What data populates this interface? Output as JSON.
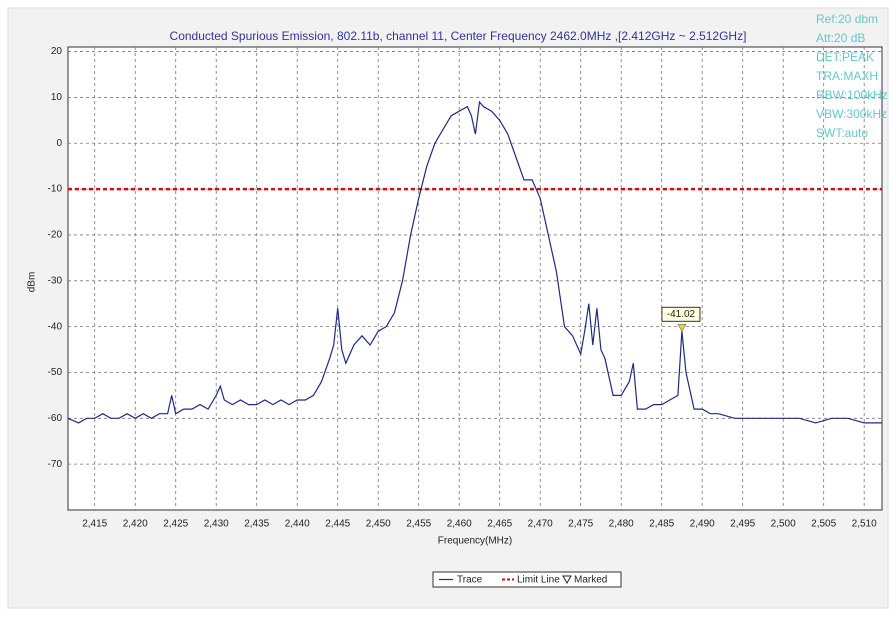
{
  "chart_data": {
    "type": "line",
    "title": "Conducted Spurious Emission, 802.11b, channel 11, Center Frequency 2462.0MHz ,[2.412GHz ~ 2.512GHz]",
    "x_label": "Frequency(MHz)",
    "y_label": "dBm",
    "info": [
      "Ref:20 dbm",
      "Att:20 dB",
      "DET:PEAK",
      "TRA:MAXH",
      "RBW:100kHz",
      "VBW:300kHz",
      "SWT:auto"
    ],
    "xlim": [
      2411.7,
      2512.2
    ],
    "ylim": [
      -80,
      21
    ],
    "grid": true,
    "xticks": [
      {
        "value": 2415,
        "label": "2,415"
      },
      {
        "value": 2420,
        "label": "2,420"
      },
      {
        "value": 2425,
        "label": "2,425"
      },
      {
        "value": 2430,
        "label": "2,430"
      },
      {
        "value": 2435,
        "label": "2,435"
      },
      {
        "value": 2440,
        "label": "2,440"
      },
      {
        "value": 2445,
        "label": "2,445"
      },
      {
        "value": 2450,
        "label": "2,450"
      },
      {
        "value": 2455,
        "label": "2,455"
      },
      {
        "value": 2460,
        "label": "2,460"
      },
      {
        "value": 2465,
        "label": "2,465"
      },
      {
        "value": 2470,
        "label": "2,470"
      },
      {
        "value": 2475,
        "label": "2,475"
      },
      {
        "value": 2480,
        "label": "2,480"
      },
      {
        "value": 2485,
        "label": "2,485"
      },
      {
        "value": 2490,
        "label": "2,490"
      },
      {
        "value": 2495,
        "label": "2,495"
      },
      {
        "value": 2500,
        "label": "2,500"
      },
      {
        "value": 2505,
        "label": "2,505"
      },
      {
        "value": 2510,
        "label": "2,510"
      }
    ],
    "yticks": [
      20,
      10,
      0,
      -10,
      -20,
      -30,
      -40,
      -50,
      -60,
      -70
    ],
    "series": [
      {
        "name": "Trace",
        "color": "#1f2a80",
        "x": [
          2411.7,
          2413,
          2414,
          2415,
          2416,
          2417,
          2418,
          2419,
          2420,
          2421,
          2422,
          2423,
          2424,
          2424.5,
          2425,
          2426,
          2427,
          2428,
          2429,
          2430,
          2430.5,
          2431,
          2432,
          2433,
          2434,
          2435,
          2436,
          2437,
          2438,
          2439,
          2440,
          2441,
          2442,
          2443,
          2444,
          2444.5,
          2445,
          2445.5,
          2446,
          2447,
          2448,
          2449,
          2450,
          2451,
          2452,
          2453,
          2454,
          2455,
          2456,
          2457,
          2458,
          2459,
          2460,
          2461,
          2461.5,
          2462,
          2462.5,
          2463,
          2464,
          2465,
          2466,
          2467,
          2468,
          2469,
          2470,
          2471,
          2472,
          2473,
          2474,
          2475,
          2475.5,
          2476,
          2476.5,
          2477,
          2477.5,
          2478,
          2479,
          2480,
          2481,
          2481.5,
          2482,
          2483,
          2484,
          2485,
          2486,
          2487,
          2487.5,
          2488,
          2489,
          2490,
          2491,
          2492,
          2494,
          2496,
          2498,
          2500,
          2502,
          2504,
          2506,
          2508,
          2510,
          2512.2
        ],
        "values": [
          -60,
          -61,
          -60,
          -60,
          -59,
          -60,
          -60,
          -59,
          -60,
          -59,
          -60,
          -59,
          -59,
          -55,
          -59,
          -58,
          -58,
          -57,
          -58,
          -55,
          -53,
          -56,
          -57,
          -56,
          -57,
          -57,
          -56,
          -57,
          -56,
          -57,
          -56,
          -56,
          -55,
          -52,
          -47,
          -44,
          -36,
          -45,
          -48,
          -44,
          -42,
          -44,
          -41,
          -40,
          -37,
          -30,
          -20,
          -12,
          -5,
          0,
          3,
          6,
          7,
          8,
          6,
          2,
          9,
          8,
          7,
          5,
          2,
          -3,
          -8,
          -8,
          -12,
          -20,
          -28,
          -40,
          -42,
          -46,
          -41,
          -35,
          -44,
          -36,
          -45,
          -47,
          -55,
          -55,
          -52,
          -48,
          -58,
          -58,
          -57,
          -57,
          -56,
          -55,
          -41,
          -50,
          -58,
          -58,
          -59,
          -59,
          -60,
          -60,
          -60,
          -60,
          -60,
          -61,
          -60,
          -60,
          -61,
          -61
        ]
      }
    ],
    "limit_line": {
      "name": "Limit Line",
      "value": -10,
      "color": "#cc1111"
    },
    "marker": {
      "name": "Marked",
      "x": 2487.5,
      "value": -41.02,
      "color": "#e8d840"
    }
  }
}
